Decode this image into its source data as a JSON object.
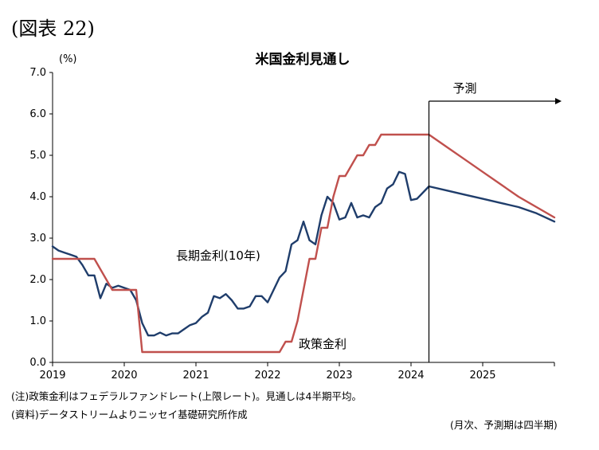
{
  "figure_label": "(図表 22)",
  "chart_data": {
    "type": "line",
    "title": "米国金利見通し",
    "y_unit": "(%)",
    "ylim": [
      0,
      7
    ],
    "yticks": [
      "0.0",
      "1.0",
      "2.0",
      "3.0",
      "4.0",
      "5.0",
      "6.0",
      "7.0"
    ],
    "x_range": [
      2019.0,
      2026.0
    ],
    "xticks": [
      "2019",
      "2020",
      "2021",
      "2022",
      "2023",
      "2024",
      "2025"
    ],
    "forecast_start": 2024.25,
    "forecast_label": "予測",
    "grid": false,
    "series": [
      {
        "name": "長期金利(10年)",
        "color": "#1f3d6b",
        "x": [
          2019.0,
          2019.083,
          2019.167,
          2019.25,
          2019.333,
          2019.417,
          2019.5,
          2019.583,
          2019.667,
          2019.75,
          2019.833,
          2019.917,
          2020.0,
          2020.083,
          2020.167,
          2020.25,
          2020.333,
          2020.417,
          2020.5,
          2020.583,
          2020.667,
          2020.75,
          2020.833,
          2020.917,
          2021.0,
          2021.083,
          2021.167,
          2021.25,
          2021.333,
          2021.417,
          2021.5,
          2021.583,
          2021.667,
          2021.75,
          2021.833,
          2021.917,
          2022.0,
          2022.083,
          2022.167,
          2022.25,
          2022.333,
          2022.417,
          2022.5,
          2022.583,
          2022.667,
          2022.75,
          2022.833,
          2022.917,
          2023.0,
          2023.083,
          2023.167,
          2023.25,
          2023.333,
          2023.417,
          2023.5,
          2023.583,
          2023.667,
          2023.75,
          2023.833,
          2023.917,
          2024.0,
          2024.083,
          2024.25,
          2024.5,
          2024.75,
          2025.0,
          2025.25,
          2025.5,
          2025.75,
          2026.0
        ],
        "y": [
          2.8,
          2.7,
          2.65,
          2.6,
          2.55,
          2.35,
          2.1,
          2.1,
          1.55,
          1.9,
          1.8,
          1.85,
          1.8,
          1.75,
          1.5,
          0.95,
          0.65,
          0.65,
          0.72,
          0.65,
          0.7,
          0.7,
          0.8,
          0.9,
          0.95,
          1.1,
          1.2,
          1.6,
          1.55,
          1.65,
          1.5,
          1.3,
          1.3,
          1.35,
          1.6,
          1.6,
          1.45,
          1.75,
          2.05,
          2.2,
          2.85,
          2.95,
          3.4,
          2.95,
          2.85,
          3.55,
          4.0,
          3.85,
          3.45,
          3.5,
          3.85,
          3.5,
          3.55,
          3.5,
          3.75,
          3.85,
          4.2,
          4.3,
          4.6,
          4.55,
          3.92,
          3.95,
          4.25,
          4.15,
          4.05,
          3.95,
          3.85,
          3.75,
          3.6,
          3.4
        ]
      },
      {
        "name": "政策金利",
        "color": "#c0504d",
        "x": [
          2019.0,
          2019.5,
          2019.583,
          2019.667,
          2019.75,
          2019.833,
          2019.917,
          2020.0,
          2020.083,
          2020.167,
          2020.25,
          2020.5,
          2021.0,
          2021.5,
          2022.0,
          2022.083,
          2022.167,
          2022.25,
          2022.333,
          2022.417,
          2022.5,
          2022.583,
          2022.667,
          2022.75,
          2022.833,
          2022.917,
          2023.0,
          2023.083,
          2023.167,
          2023.25,
          2023.333,
          2023.417,
          2023.5,
          2023.583,
          2023.667,
          2023.75,
          2023.833,
          2023.917,
          2024.0,
          2024.083,
          2024.25,
          2024.5,
          2024.75,
          2025.0,
          2025.25,
          2025.5,
          2025.75,
          2026.0
        ],
        "y": [
          2.5,
          2.5,
          2.5,
          2.25,
          2.0,
          1.75,
          1.75,
          1.75,
          1.75,
          1.75,
          0.25,
          0.25,
          0.25,
          0.25,
          0.25,
          0.25,
          0.25,
          0.5,
          0.5,
          1.0,
          1.75,
          2.5,
          2.5,
          3.25,
          3.25,
          4.0,
          4.5,
          4.5,
          4.75,
          5.0,
          5.0,
          5.25,
          5.25,
          5.5,
          5.5,
          5.5,
          5.5,
          5.5,
          5.5,
          5.5,
          5.5,
          5.2,
          4.9,
          4.6,
          4.3,
          4.0,
          3.75,
          3.5
        ]
      }
    ]
  },
  "footnotes": {
    "note": "(注)政策金利はフェデラルファンドレート(上限レート)。見通しは4半期平均。",
    "source": "(資料)データストリームよりニッセイ基礎研究所作成",
    "right": "(月次、予測期は四半期)"
  }
}
